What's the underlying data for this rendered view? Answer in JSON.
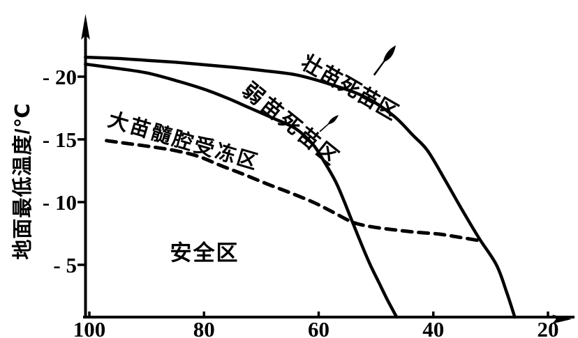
{
  "figure": {
    "background": "#ffffff",
    "ink_color": "#000000"
  },
  "chart_data": {
    "type": "line",
    "title": "",
    "xlabel": "",
    "ylabel": "地面最低温度/℃",
    "x_axis": {
      "tick_labels": [
        "100",
        "80",
        "60",
        "40",
        "20"
      ],
      "tick_values": [
        100,
        80,
        60,
        40,
        20
      ],
      "reversed": true,
      "range": [
        100,
        20
      ],
      "arrow": "right"
    },
    "y_axis": {
      "tick_labels": [
        "- 20",
        "- 15",
        "- 10",
        "- 5"
      ],
      "tick_values": [
        -20,
        -15,
        -10,
        -5
      ],
      "inverted": true,
      "range": [
        0,
        -22
      ],
      "arrow": "up"
    },
    "grid": false,
    "legend": "none",
    "series": [
      {
        "name": "壮苗死苗区边界",
        "style": "solid",
        "x": [
          100.7,
          95,
          90,
          85,
          80,
          75,
          70,
          64,
          58,
          52,
          47,
          43.5,
          41,
          38,
          35,
          32,
          29,
          27.2,
          25.8
        ],
        "y": [
          -21.55,
          -21.45,
          -21.3,
          -21.15,
          -20.95,
          -20.75,
          -20.5,
          -20.15,
          -19.4,
          -18.4,
          -16.9,
          -15.3,
          -14.1,
          -11.8,
          -9.4,
          -7.1,
          -5.0,
          -2.8,
          -0.8
        ]
      },
      {
        "name": "弱苗死苗区边界",
        "style": "solid",
        "x": [
          100.7,
          95,
          90,
          85,
          80,
          76,
          72,
          68,
          64,
          61,
          59,
          57,
          55.5,
          54.1,
          52.5,
          51,
          49.5,
          48,
          46.4
        ],
        "y": [
          -21.0,
          -20.65,
          -20.3,
          -19.7,
          -19.0,
          -18.3,
          -17.5,
          -16.7,
          -15.85,
          -14.6,
          -13.2,
          -11.6,
          -10.0,
          -8.4,
          -6.6,
          -5.0,
          -3.6,
          -2.2,
          -0.8
        ]
      },
      {
        "name": "大苗髓腔受冻区边界",
        "style": "dashed",
        "x": [
          97,
          93,
          89,
          85,
          81,
          77,
          73,
          69,
          65,
          61,
          57.5,
          54.1,
          51,
          47,
          43,
          39,
          35.5,
          31.6
        ],
        "y": [
          -14.9,
          -14.65,
          -14.4,
          -14.1,
          -13.65,
          -12.9,
          -12.2,
          -11.45,
          -10.75,
          -10.0,
          -9.2,
          -8.4,
          -8.05,
          -7.8,
          -7.6,
          -7.45,
          -7.2,
          -6.9
        ]
      }
    ],
    "region_labels": [
      {
        "id": "strong",
        "text": "壮苗死苗区"
      },
      {
        "id": "weak",
        "text": "弱苗死苗区"
      },
      {
        "id": "pith",
        "text": "大苗髓腔受冻区"
      },
      {
        "id": "safe",
        "text": "安全区"
      }
    ]
  }
}
